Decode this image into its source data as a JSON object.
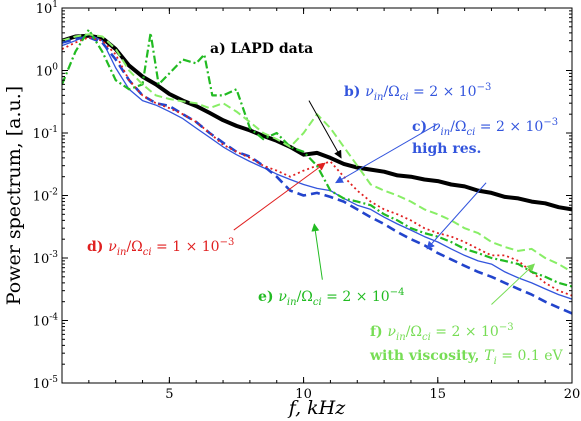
{
  "chart_data": {
    "type": "line",
    "xlabel": "f, kHz",
    "ylabel": "Power spectrum, [a.u.]",
    "xlim": [
      1,
      20
    ],
    "ylim": [
      1e-05,
      10
    ],
    "yscale": "log",
    "grid": false,
    "legend": "none",
    "x_ticks": [
      5,
      10,
      15,
      20
    ],
    "x_tick_labels": [
      "5",
      "10",
      "15",
      "20"
    ],
    "y_ticks": [
      1e-05,
      0.0001,
      0.001,
      0.01,
      0.1,
      1,
      10
    ],
    "y_tick_labels": [
      {
        "base": "10",
        "exp": "-5"
      },
      {
        "base": "10",
        "exp": "-4"
      },
      {
        "base": "10",
        "exp": "-3"
      },
      {
        "base": "10",
        "exp": "-2"
      },
      {
        "base": "10",
        "exp": "-1"
      },
      {
        "base": "10",
        "exp": "0"
      },
      {
        "base": "10",
        "exp": "1"
      }
    ],
    "series": [
      {
        "key": "lapd",
        "color": "#000000",
        "dash": "solid",
        "width": 4,
        "x": [
          1.0,
          1.5,
          2.0,
          2.5,
          3.0,
          3.5,
          4.0,
          4.5,
          5.0,
          5.5,
          6.0,
          6.5,
          7.0,
          7.5,
          8.0,
          8.5,
          9.0,
          9.5,
          10.0,
          10.5,
          11.0,
          11.5,
          12.0,
          12.5,
          13.0,
          13.5,
          14.0,
          14.5,
          15.0,
          15.5,
          16.0,
          16.5,
          17.0,
          17.5,
          18.0,
          18.5,
          19.0,
          19.5,
          20.0
        ],
        "y": [
          3.0,
          3.5,
          3.6,
          3.3,
          2.2,
          1.2,
          0.8,
          0.6,
          0.42,
          0.33,
          0.27,
          0.21,
          0.16,
          0.13,
          0.11,
          0.09,
          0.075,
          0.06,
          0.045,
          0.048,
          0.04,
          0.032,
          0.028,
          0.026,
          0.024,
          0.021,
          0.02,
          0.018,
          0.017,
          0.015,
          0.014,
          0.012,
          0.011,
          0.0095,
          0.009,
          0.008,
          0.0075,
          0.0065,
          0.006
        ]
      },
      {
        "key": "b",
        "color": "#3355dd",
        "dash": "solid",
        "width": 1.3,
        "x": [
          1.0,
          1.5,
          2.0,
          2.5,
          3.0,
          3.5,
          4.0,
          4.5,
          5.0,
          5.5,
          6.0,
          6.5,
          7.0,
          7.5,
          8.0,
          8.5,
          9.0,
          9.5,
          10.0,
          10.5,
          11.0,
          11.5,
          12.0,
          12.5,
          13.0,
          13.5,
          14.0,
          14.5,
          15.0,
          15.5,
          16.0,
          16.5,
          17.0,
          17.5,
          18.0,
          18.5,
          19.0,
          19.5,
          20.0
        ],
        "y": [
          2.5,
          3.0,
          3.8,
          3.0,
          1.1,
          0.5,
          0.33,
          0.28,
          0.22,
          0.17,
          0.12,
          0.085,
          0.06,
          0.045,
          0.035,
          0.028,
          0.022,
          0.018,
          0.015,
          0.013,
          0.012,
          0.009,
          0.007,
          0.006,
          0.0045,
          0.0035,
          0.0028,
          0.0022,
          0.0018,
          0.0014,
          0.0011,
          0.0009,
          0.0008,
          0.0006,
          0.00048,
          0.0004,
          0.00032,
          0.00026,
          0.00022
        ]
      },
      {
        "key": "c",
        "color": "#2244cc",
        "dash": "9,5",
        "width": 2.6,
        "x": [
          1.0,
          1.5,
          2.0,
          2.5,
          3.0,
          3.5,
          4.0,
          4.5,
          5.0,
          5.5,
          6.0,
          6.5,
          7.0,
          7.5,
          8.0,
          8.5,
          9.0,
          9.5,
          10.0,
          10.5,
          11.0,
          11.5,
          12.0,
          12.5,
          13.0,
          13.5,
          14.0,
          14.5,
          15.0,
          15.5,
          16.0,
          16.5,
          17.0,
          17.5,
          18.0,
          18.5,
          19.0,
          19.5,
          20.0
        ],
        "y": [
          2.8,
          3.2,
          3.4,
          2.8,
          1.5,
          0.7,
          0.4,
          0.3,
          0.27,
          0.2,
          0.15,
          0.1,
          0.07,
          0.05,
          0.042,
          0.03,
          0.02,
          0.012,
          0.01,
          0.011,
          0.0095,
          0.008,
          0.006,
          0.0045,
          0.0035,
          0.0026,
          0.002,
          0.0016,
          0.0012,
          0.00095,
          0.00075,
          0.0006,
          0.0005,
          0.0004,
          0.00032,
          0.00026,
          0.0002,
          0.00016,
          0.00013
        ]
      },
      {
        "key": "d",
        "color": "#e02020",
        "dash": "2,3",
        "width": 1.8,
        "x": [
          1.0,
          1.5,
          2.0,
          2.5,
          3.0,
          3.5,
          4.0,
          4.5,
          5.0,
          5.5,
          6.0,
          6.5,
          7.0,
          7.5,
          8.0,
          8.5,
          9.0,
          9.5,
          10.0,
          10.5,
          11.0,
          11.5,
          12.0,
          12.5,
          13.0,
          13.5,
          14.0,
          14.5,
          15.0,
          15.5,
          16.0,
          16.5,
          17.0,
          17.5,
          18.0,
          18.5,
          19.0,
          19.5,
          20.0
        ],
        "y": [
          2.2,
          2.8,
          3.4,
          3.0,
          1.8,
          0.7,
          0.4,
          0.3,
          0.25,
          0.2,
          0.15,
          0.1,
          0.065,
          0.05,
          0.04,
          0.03,
          0.025,
          0.02,
          0.025,
          0.03,
          0.035,
          0.02,
          0.012,
          0.008,
          0.006,
          0.005,
          0.004,
          0.003,
          0.0025,
          0.0022,
          0.0018,
          0.0014,
          0.0011,
          0.0011,
          0.0009,
          0.0006,
          0.0004,
          0.0003,
          0.00025
        ]
      },
      {
        "key": "e",
        "color": "#22bb22",
        "dash": "8,3,2,3",
        "width": 2.2,
        "x": [
          1.0,
          1.5,
          2.0,
          2.5,
          3.0,
          3.5,
          4.0,
          4.3,
          4.6,
          5.0,
          5.5,
          6.0,
          6.3,
          6.6,
          7.0,
          7.5,
          8.0,
          8.5,
          9.0,
          9.5,
          10.0,
          10.5,
          11.0,
          11.5,
          12.0,
          12.5,
          13.0,
          13.5,
          14.0,
          14.5,
          15.0,
          15.5,
          16.0,
          16.5,
          17.0,
          17.5,
          18.0,
          18.5,
          19.0,
          19.5,
          20.0
        ],
        "y": [
          0.6,
          2.0,
          4.5,
          2.0,
          0.7,
          0.5,
          0.6,
          4.0,
          0.6,
          0.9,
          1.5,
          1.3,
          1.8,
          0.4,
          0.4,
          0.5,
          0.12,
          0.08,
          0.1,
          0.06,
          0.05,
          0.03,
          0.012,
          0.009,
          0.008,
          0.007,
          0.005,
          0.004,
          0.003,
          0.0025,
          0.0022,
          0.0018,
          0.0014,
          0.0012,
          0.001,
          0.0009,
          0.0008,
          0.0006,
          0.0005,
          0.0004,
          0.00035
        ]
      },
      {
        "key": "f",
        "color": "#88ee66",
        "dash": "8,4",
        "width": 2,
        "x": [
          1.0,
          1.5,
          2.0,
          2.5,
          3.0,
          3.5,
          4.0,
          4.5,
          5.0,
          5.5,
          6.0,
          6.5,
          7.0,
          7.5,
          8.0,
          8.5,
          9.0,
          9.5,
          10.0,
          10.5,
          11.0,
          11.5,
          12.0,
          12.5,
          13.0,
          13.5,
          14.0,
          14.5,
          15.0,
          15.5,
          16.0,
          16.5,
          17.0,
          17.5,
          18.0,
          18.5,
          19.0,
          19.5,
          20.0
        ],
        "y": [
          3.0,
          3.5,
          3.8,
          3.5,
          2.2,
          1.0,
          0.6,
          0.4,
          0.35,
          0.32,
          0.3,
          0.25,
          0.3,
          0.22,
          0.15,
          0.1,
          0.08,
          0.06,
          0.1,
          0.2,
          0.12,
          0.06,
          0.03,
          0.015,
          0.012,
          0.01,
          0.008,
          0.006,
          0.005,
          0.004,
          0.003,
          0.0025,
          0.0018,
          0.0015,
          0.0013,
          0.0014,
          0.001,
          0.0008,
          0.0006
        ]
      }
    ],
    "annotations": [
      {
        "key": "a",
        "color": "#000000",
        "text": "a) LAPD data",
        "ax": 10.2,
        "ay": 0.33,
        "tx": 11.4,
        "ty": 0.04
      },
      {
        "key": "b",
        "color": "#3355dd",
        "text_pre": "b) ",
        "math": "ν",
        "sub1": "in",
        "slash": "/Ω",
        "sub2": "ci",
        "rhs": " = 2 × 10",
        "sup": "−3",
        "ax": 15.0,
        "ay": 0.14,
        "tx": 11.2,
        "ty": 0.016
      },
      {
        "key": "c",
        "color": "#3355dd",
        "text_pre": "c) ",
        "math": "ν",
        "sub1": "in",
        "slash": "/Ω",
        "sub2": "ci",
        "rhs": " = 2 × 10",
        "sup": "−3",
        "line2": "high res.",
        "ax": 16.8,
        "ay": 0.016,
        "tx": 14.6,
        "ty": 0.0014
      },
      {
        "key": "d",
        "color": "#e02020",
        "text_pre": "d) ",
        "math": "ν",
        "sub1": "in",
        "slash": "/Ω",
        "sub2": "ci",
        "rhs": " = 1 × 10",
        "sup": "−3",
        "ax": 7.4,
        "ay": 0.0028,
        "tx": 10.8,
        "ty": 0.033
      },
      {
        "key": "e",
        "color": "#22bb22",
        "text_pre": "e) ",
        "math": "ν",
        "sub1": "in",
        "slash": "/Ω",
        "sub2": "ci",
        "rhs": " = 2 × 10",
        "sup": "−4",
        "ax": 10.7,
        "ay": 0.00045,
        "tx": 10.4,
        "ty": 0.0035
      },
      {
        "key": "f",
        "color": "#77dd55",
        "text_pre": "f) ",
        "math": "ν",
        "sub1": "in",
        "slash": "/Ω",
        "sub2": "ci",
        "rhs": " = 2 × 10",
        "sup": "−3",
        "line2_pre": "with viscosity, ",
        "line2_math": "T",
        "line2_sub": "i",
        "line2_rhs": " = 0.1 eV",
        "ax": 17.0,
        "ay": 0.00018,
        "tx": 18.6,
        "ty": 0.0008
      }
    ]
  }
}
